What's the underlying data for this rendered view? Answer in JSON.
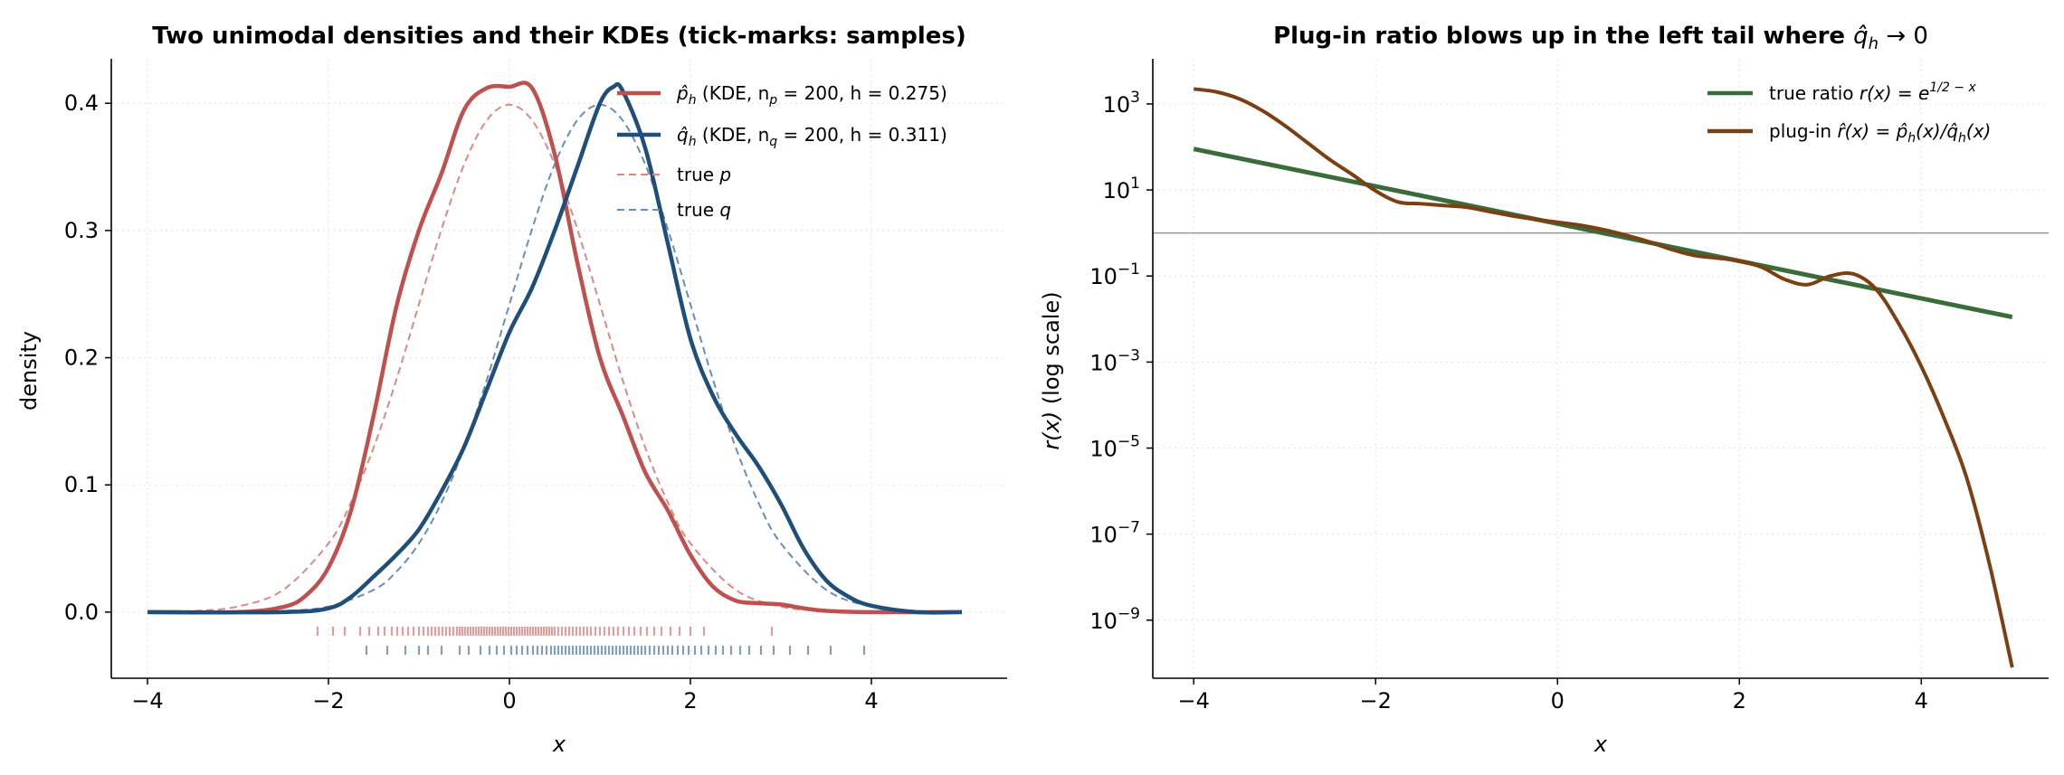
{
  "chart_data": [
    {
      "type": "line",
      "title": "Two unimodal densities and their KDEs (tick-marks: samples)",
      "xlabel": "x",
      "ylabel": "density",
      "xlim": [
        -4.4,
        5.5
      ],
      "ylim": [
        -0.052,
        0.435
      ],
      "xticks": [
        -4,
        -2,
        0,
        2,
        4
      ],
      "xtick_labels": [
        "−4",
        "−2",
        "0",
        "2",
        "4"
      ],
      "yticks": [
        0.0,
        0.1,
        0.2,
        0.3,
        0.4
      ],
      "ytick_labels": [
        "0.0",
        "0.1",
        "0.2",
        "0.3",
        "0.4"
      ],
      "grid": true,
      "legend_position": "top-right",
      "series": [
        {
          "name": "p̂_h (KDE, n_p = 200, h = 0.275)",
          "legend_main": "p̂",
          "legend_sub": "h",
          "legend_rest": " (KDE, n",
          "legend_sub2": "p",
          "legend_tail": " = 200, h = 0.275)",
          "color": "#c0504d",
          "style": "solid",
          "x": [
            -4,
            -3,
            -2.5,
            -2.25,
            -2,
            -1.75,
            -1.5,
            -1.25,
            -1,
            -0.75,
            -0.5,
            -0.25,
            0,
            0.25,
            0.5,
            0.75,
            1,
            1.25,
            1.5,
            1.75,
            2,
            2.25,
            2.5,
            2.75,
            3,
            3.25,
            3.5,
            4,
            5
          ],
          "y": [
            0,
            0,
            0.004,
            0.013,
            0.035,
            0.08,
            0.155,
            0.24,
            0.3,
            0.345,
            0.395,
            0.412,
            0.413,
            0.412,
            0.36,
            0.275,
            0.2,
            0.155,
            0.11,
            0.08,
            0.045,
            0.02,
            0.009,
            0.007,
            0.006,
            0.003,
            0.001,
            0,
            0
          ]
        },
        {
          "name": "q̂_h (KDE, n_q = 200, h = 0.311)",
          "legend_main": "q̂",
          "legend_sub": "h",
          "legend_rest": " (KDE, n",
          "legend_sub2": "q",
          "legend_tail": " = 200, h = 0.311)",
          "color": "#1f4e79",
          "style": "solid",
          "x": [
            -4,
            -2.5,
            -2,
            -1.75,
            -1.5,
            -1.25,
            -1,
            -0.75,
            -0.5,
            -0.25,
            0,
            0.25,
            0.5,
            0.75,
            1,
            1.15,
            1.25,
            1.5,
            1.75,
            2,
            2.25,
            2.5,
            2.75,
            3,
            3.25,
            3.5,
            3.75,
            4,
            4.5,
            5
          ],
          "y": [
            0,
            0,
            0.003,
            0.012,
            0.028,
            0.045,
            0.065,
            0.095,
            0.13,
            0.175,
            0.22,
            0.255,
            0.3,
            0.35,
            0.4,
            0.413,
            0.41,
            0.365,
            0.29,
            0.215,
            0.17,
            0.14,
            0.115,
            0.085,
            0.05,
            0.025,
            0.012,
            0.005,
            0,
            0
          ]
        },
        {
          "name": "true p",
          "legend_main": "true ",
          "legend_ital": "p",
          "color": "#d98a86",
          "style": "dashed",
          "x": [
            -4,
            -3.5,
            -3,
            -2.5,
            -2,
            -1.75,
            -1.5,
            -1.25,
            -1,
            -0.75,
            -0.5,
            -0.25,
            0,
            0.25,
            0.5,
            0.75,
            1,
            1.25,
            1.5,
            1.75,
            2,
            2.5,
            3,
            3.5,
            4,
            4.5,
            5
          ],
          "y": [
            0.0001,
            0.0009,
            0.0044,
            0.0175,
            0.054,
            0.0863,
            0.1295,
            0.1826,
            0.242,
            0.3011,
            0.3521,
            0.3867,
            0.3989,
            0.3867,
            0.3521,
            0.3011,
            0.242,
            0.1826,
            0.1295,
            0.0863,
            0.054,
            0.0175,
            0.0044,
            0.0009,
            0.0001,
            0,
            0
          ]
        },
        {
          "name": "true q",
          "legend_main": "true ",
          "legend_ital": "q",
          "color": "#6b8db5",
          "style": "dashed",
          "x": [
            -4,
            -3,
            -2.5,
            -2,
            -1.5,
            -1.25,
            -1,
            -0.75,
            -0.5,
            -0.25,
            0,
            0.25,
            0.5,
            0.75,
            1,
            1.25,
            1.5,
            1.75,
            2,
            2.25,
            2.5,
            2.75,
            3,
            3.5,
            4,
            4.5,
            5
          ],
          "y": [
            0,
            0.0001,
            0.0009,
            0.0044,
            0.0175,
            0.0317,
            0.054,
            0.0863,
            0.1295,
            0.1826,
            0.242,
            0.3011,
            0.3521,
            0.3867,
            0.3989,
            0.3867,
            0.3521,
            0.3011,
            0.242,
            0.1826,
            0.1295,
            0.0863,
            0.054,
            0.0175,
            0.0044,
            0.0009,
            0.0001
          ]
        }
      ],
      "rug": [
        {
          "name": "p samples",
          "color": "#c0504d",
          "y": -0.015,
          "x": [
            -2.12,
            -1.95,
            -1.82,
            -1.65,
            -1.55,
            -1.45,
            -1.38,
            -1.3,
            -1.24,
            -1.18,
            -1.12,
            -1.06,
            -1.0,
            -0.95,
            -0.9,
            -0.86,
            -0.82,
            -0.78,
            -0.74,
            -0.7,
            -0.66,
            -0.62,
            -0.58,
            -0.55,
            -0.52,
            -0.49,
            -0.46,
            -0.43,
            -0.4,
            -0.37,
            -0.34,
            -0.31,
            -0.28,
            -0.25,
            -0.22,
            -0.19,
            -0.16,
            -0.13,
            -0.1,
            -0.07,
            -0.04,
            -0.01,
            0.02,
            0.05,
            0.08,
            0.11,
            0.14,
            0.17,
            0.2,
            0.23,
            0.26,
            0.29,
            0.32,
            0.35,
            0.38,
            0.41,
            0.44,
            0.47,
            0.5,
            0.54,
            0.58,
            0.62,
            0.66,
            0.7,
            0.74,
            0.78,
            0.82,
            0.86,
            0.9,
            0.95,
            1.0,
            1.05,
            1.1,
            1.15,
            1.2,
            1.26,
            1.32,
            1.38,
            1.45,
            1.52,
            1.6,
            1.68,
            1.78,
            1.88,
            2.0,
            2.15,
            2.9
          ]
        },
        {
          "name": "q samples",
          "color": "#1f4e79",
          "y": -0.03,
          "x": [
            -1.58,
            -1.35,
            -1.15,
            -1.0,
            -0.9,
            -0.75,
            -0.55,
            -0.45,
            -0.32,
            -0.22,
            -0.14,
            -0.06,
            0.02,
            0.08,
            0.14,
            0.2,
            0.26,
            0.31,
            0.36,
            0.41,
            0.46,
            0.5,
            0.54,
            0.58,
            0.62,
            0.66,
            0.7,
            0.74,
            0.78,
            0.82,
            0.86,
            0.9,
            0.94,
            0.98,
            1.02,
            1.06,
            1.1,
            1.14,
            1.18,
            1.22,
            1.26,
            1.3,
            1.34,
            1.38,
            1.42,
            1.46,
            1.5,
            1.55,
            1.6,
            1.65,
            1.7,
            1.75,
            1.8,
            1.86,
            1.92,
            1.98,
            2.05,
            2.12,
            2.2,
            2.28,
            2.36,
            2.45,
            2.55,
            2.65,
            2.78,
            2.92,
            3.1,
            3.3,
            3.55,
            3.92
          ]
        }
      ]
    },
    {
      "type": "line",
      "title_main": "Plug-in ratio blows up in the left tail where ",
      "title_math": "q̂",
      "title_sub": "h",
      "title_tail": " → 0",
      "xlabel": "x",
      "ylabel_math": "r(x)",
      "ylabel_rest": "  (log scale)",
      "xlim": [
        -4.45,
        5.4
      ],
      "yscale": "log",
      "ylim_log10": [
        -10.35,
        4.05
      ],
      "xticks": [
        -4,
        -2,
        0,
        2,
        4
      ],
      "xtick_labels": [
        "−4",
        "−2",
        "0",
        "2",
        "4"
      ],
      "yticks_log10": [
        3,
        1,
        -1,
        -3,
        -5,
        -7,
        -9
      ],
      "ytick_exponents": [
        "3",
        "1",
        "−1",
        "−3",
        "−5",
        "−7",
        "−9"
      ],
      "ytick_base": "10",
      "hline_log10": 0,
      "grid": true,
      "legend_position": "top-right",
      "series": [
        {
          "name": "true ratio r(x) = e^(1/2 − x)",
          "legend_main": "true ratio ",
          "legend_math": "r(x) = e",
          "legend_sup": "1/2 − x",
          "color": "#3a6b3a",
          "x": [
            -4,
            5
          ],
          "log10_y": [
            1.954,
            -1.954
          ]
        },
        {
          "name": "plug-in r̂(x) = p̂_h(x)/q̂_h(x)",
          "legend_main": "plug-in ",
          "legend_math": "r̂(x) = p̂",
          "legend_sub": "h",
          "legend_math2": "(x)/q̂",
          "legend_sub2": "h",
          "legend_math3": "(x)",
          "color": "#7b3f12",
          "x": [
            -4,
            -3.75,
            -3.5,
            -3.25,
            -3,
            -2.75,
            -2.5,
            -2.25,
            -2,
            -1.75,
            -1.5,
            -1.25,
            -1,
            -0.75,
            -0.5,
            -0.25,
            0,
            0.25,
            0.5,
            0.75,
            1,
            1.25,
            1.5,
            1.75,
            2,
            2.25,
            2.5,
            2.75,
            3,
            3.25,
            3.5,
            3.75,
            4,
            4.25,
            4.5,
            4.75,
            5
          ],
          "log10_y": [
            3.35,
            3.28,
            3.12,
            2.85,
            2.5,
            2.1,
            1.7,
            1.35,
            0.98,
            0.72,
            0.68,
            0.64,
            0.6,
            0.5,
            0.4,
            0.32,
            0.25,
            0.18,
            0.08,
            -0.05,
            -0.2,
            -0.38,
            -0.52,
            -0.58,
            -0.65,
            -0.8,
            -1.08,
            -1.2,
            -1.0,
            -0.95,
            -1.3,
            -2.1,
            -3.1,
            -4.3,
            -5.7,
            -7.7,
            -10.1
          ]
        }
      ]
    }
  ]
}
